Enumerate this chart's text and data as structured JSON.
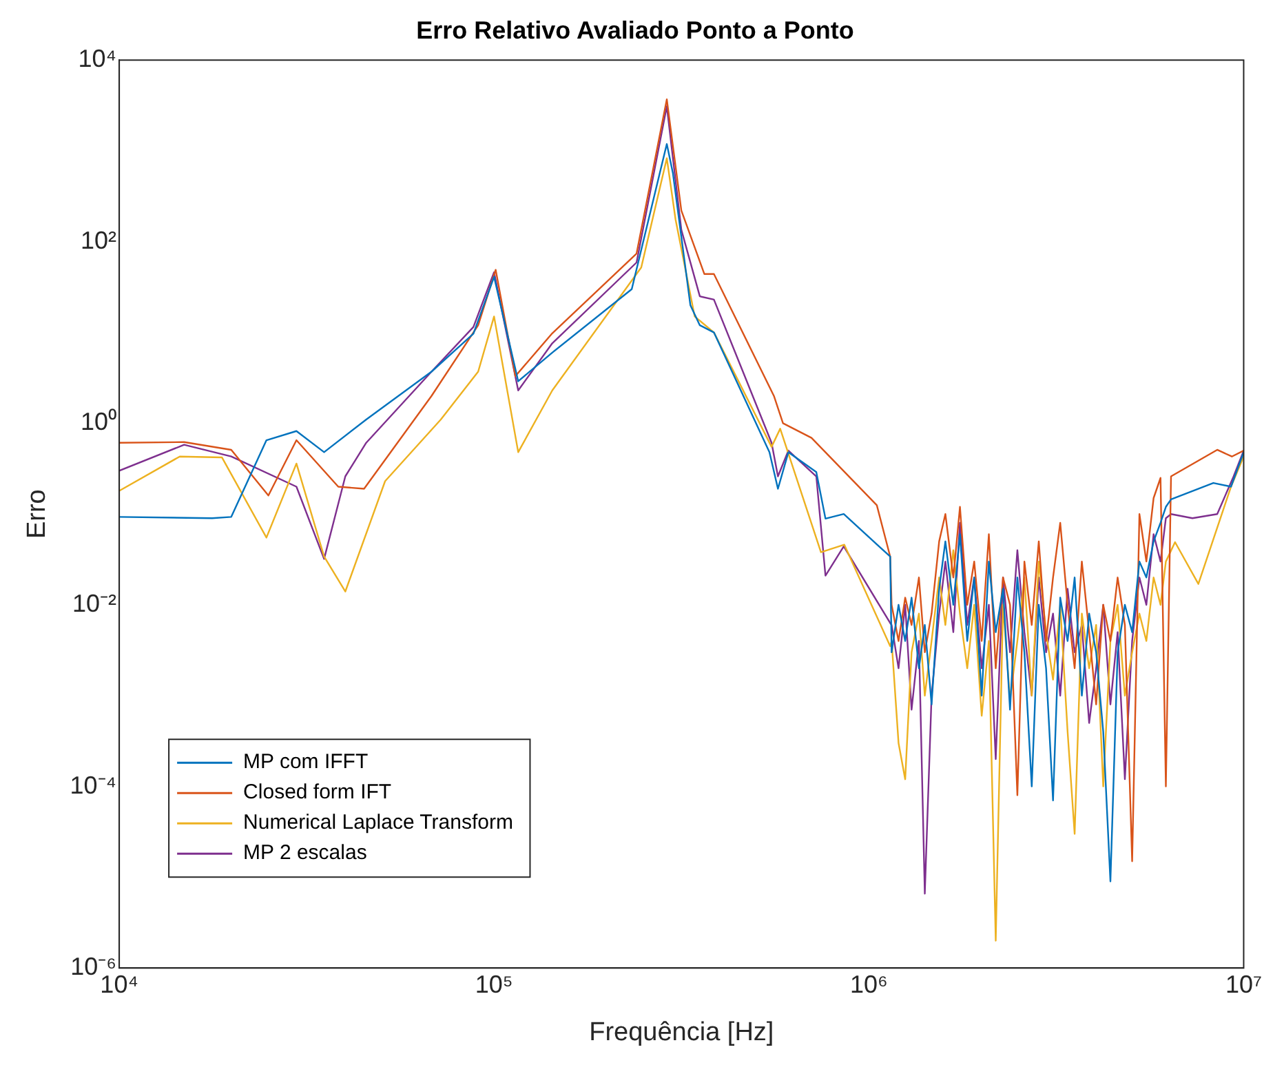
{
  "chart_data": {
    "type": "line",
    "title": "Erro Relativo Avaliado Ponto a Ponto",
    "xlabel": "Frequência [Hz]",
    "ylabel": "Erro",
    "log": "xy",
    "grid": false,
    "legend": "bottom left",
    "marker": "none",
    "line_style": "solid",
    "xlim": [
      10000,
      10000000
    ],
    "xticks": [
      {
        "value": 10000,
        "label": "10⁴"
      },
      {
        "value": 100000,
        "label": "10⁵"
      },
      {
        "value": 1000000,
        "label": "10⁶"
      },
      {
        "value": 10000000,
        "label": "10⁷"
      }
    ],
    "ylim": [
      1e-06,
      10000
    ],
    "yticks": [
      {
        "value": 1e-06,
        "label": "10⁻⁶"
      },
      {
        "value": 0.0001,
        "label": "10⁻⁴"
      },
      {
        "value": 0.01,
        "label": "10⁻²"
      },
      {
        "value": 1,
        "label": "10⁰"
      },
      {
        "value": 100,
        "label": "10²"
      },
      {
        "value": 10000,
        "label": "10⁴"
      }
    ],
    "series": [
      {
        "name": "MP com IFFT",
        "color": "#0072bd",
        "x": [
          10000,
          17700,
          19900,
          24700,
          29700,
          35200,
          45600,
          68100,
          88100,
          100000,
          116000,
          143000,
          233000,
          289000,
          300000,
          334000,
          354000,
          386000,
          543000,
          572000,
          610000,
          724000,
          766000,
          857000,
          1140000,
          1150000,
          1200000,
          1250000,
          1300000,
          1360000,
          1410000,
          1470000,
          1540000,
          1600000,
          1680000,
          1750000,
          1830000,
          1910000,
          2000000,
          2090000,
          2180000,
          2280000,
          2380000,
          2490000,
          2600000,
          2720000,
          2840000,
          2970000,
          3100000,
          3240000,
          3390000,
          3540000,
          3700000,
          3870000,
          4040000,
          4220000,
          4410000,
          4610000,
          4820000,
          5040000,
          5270000,
          5500000,
          5750000,
          6000000,
          6200000,
          6400000,
          8300000,
          9250000,
          10000000
        ],
        "values": [
          0.093,
          0.09,
          0.093,
          0.65,
          0.82,
          0.48,
          1.1,
          3.7,
          9.7,
          41,
          2.9,
          6,
          30,
          1190,
          570,
          20,
          12,
          10,
          0.48,
          0.19,
          0.48,
          0.29,
          0.089,
          0.1,
          0.034,
          0.003,
          0.01,
          0.004,
          0.012,
          0.002,
          0.006,
          0.0008,
          0.015,
          0.05,
          0.01,
          0.06,
          0.004,
          0.02,
          0.001,
          0.03,
          0.005,
          0.015,
          0.0007,
          0.02,
          0.003,
          0.0001,
          0.01,
          0.002,
          7e-05,
          0.012,
          0.004,
          0.02,
          0.001,
          0.008,
          0.003,
          0.0004,
          9e-06,
          0.003,
          0.01,
          0.005,
          0.03,
          0.02,
          0.05,
          0.08,
          0.12,
          0.145,
          0.22,
          0.2,
          0.48
        ]
      },
      {
        "name": "Closed form IFT",
        "color": "#d95319",
        "x": [
          10000,
          14900,
          19900,
          25000,
          29700,
          38400,
          45000,
          68100,
          90700,
          101000,
          114000,
          143000,
          240000,
          289000,
          316000,
          364000,
          386000,
          558000,
          590000,
          703000,
          1050000,
          1140000,
          1150000,
          1200000,
          1250000,
          1300000,
          1360000,
          1410000,
          1470000,
          1540000,
          1600000,
          1680000,
          1750000,
          1830000,
          1910000,
          2000000,
          2090000,
          2180000,
          2280000,
          2380000,
          2490000,
          2600000,
          2720000,
          2840000,
          2970000,
          3100000,
          3240000,
          3390000,
          3540000,
          3700000,
          3870000,
          4040000,
          4220000,
          4410000,
          4610000,
          4820000,
          5040000,
          5270000,
          5500000,
          5750000,
          6000000,
          6200000,
          6400000,
          8500000,
          9300000,
          10000000
        ],
        "values": [
          0.61,
          0.62,
          0.51,
          0.16,
          0.65,
          0.2,
          0.19,
          2,
          12,
          49,
          3.3,
          9.8,
          74,
          3700,
          220,
          44,
          44,
          2,
          1,
          0.69,
          0.125,
          0.034,
          0.01,
          0.004,
          0.012,
          0.006,
          0.02,
          0.003,
          0.008,
          0.05,
          0.1,
          0.02,
          0.12,
          0.01,
          0.03,
          0.004,
          0.06,
          0.002,
          0.02,
          0.01,
          8e-05,
          0.03,
          0.006,
          0.05,
          0.004,
          0.02,
          0.08,
          0.01,
          0.002,
          0.03,
          0.005,
          0.0008,
          0.01,
          0.004,
          0.02,
          0.006,
          1.5e-05,
          0.1,
          0.03,
          0.15,
          0.25,
          0.0001,
          0.26,
          0.51,
          0.43,
          0.5
        ]
      },
      {
        "name": "Numerical Laplace Transform",
        "color": "#edb120",
        "x": [
          10000,
          14500,
          18800,
          24700,
          29700,
          35200,
          40100,
          51200,
          72100,
          90700,
          100000,
          116000,
          143000,
          247000,
          289000,
          305000,
          343000,
          386000,
          550000,
          580000,
          745000,
          860000,
          1140000,
          1150000,
          1200000,
          1250000,
          1300000,
          1360000,
          1410000,
          1470000,
          1540000,
          1600000,
          1680000,
          1750000,
          1830000,
          1910000,
          2000000,
          2090000,
          2180000,
          2280000,
          2380000,
          2490000,
          2600000,
          2720000,
          2840000,
          2970000,
          3100000,
          3240000,
          3390000,
          3540000,
          3700000,
          3870000,
          4040000,
          4220000,
          4410000,
          4610000,
          4820000,
          5040000,
          5270000,
          5500000,
          5750000,
          6000000,
          6200000,
          6560000,
          7570000,
          9250000,
          10000000
        ],
        "values": [
          0.18,
          0.43,
          0.42,
          0.055,
          0.36,
          0.034,
          0.014,
          0.23,
          1.1,
          3.7,
          15,
          0.48,
          2.3,
          52,
          830,
          175,
          15,
          10,
          0.55,
          0.87,
          0.038,
          0.046,
          0.0035,
          0.004,
          0.0003,
          0.00012,
          0.003,
          0.008,
          0.001,
          0.004,
          0.02,
          0.006,
          0.04,
          0.008,
          0.002,
          0.01,
          0.0006,
          0.004,
          2e-06,
          0.01,
          0.0009,
          0.004,
          0.02,
          0.001,
          0.03,
          0.005,
          0.0015,
          0.01,
          0.0004,
          3e-05,
          0.008,
          0.002,
          0.006,
          0.0001,
          0.004,
          0.01,
          0.001,
          0.003,
          0.008,
          0.004,
          0.02,
          0.01,
          0.03,
          0.049,
          0.017,
          0.2,
          0.43
        ]
      },
      {
        "name": "MP 2 escalas",
        "color": "#7e2f8e",
        "x": [
          10000,
          14900,
          19900,
          29700,
          35200,
          40100,
          45600,
          68100,
          88100,
          100000,
          116000,
          143000,
          240000,
          289000,
          316000,
          354000,
          386000,
          550000,
          572000,
          610000,
          724000,
          766000,
          857000,
          1140000,
          1150000,
          1200000,
          1250000,
          1300000,
          1360000,
          1410000,
          1470000,
          1540000,
          1600000,
          1680000,
          1750000,
          1830000,
          1910000,
          2000000,
          2090000,
          2180000,
          2280000,
          2380000,
          2490000,
          2600000,
          2720000,
          2840000,
          2970000,
          3100000,
          3240000,
          3390000,
          3540000,
          3700000,
          3870000,
          4040000,
          4220000,
          4410000,
          4610000,
          4820000,
          5040000,
          5270000,
          5500000,
          5750000,
          6000000,
          6200000,
          6400000,
          7300000,
          8500000,
          9400000,
          10000000
        ],
        "values": [
          0.3,
          0.58,
          0.43,
          0.2,
          0.032,
          0.26,
          0.61,
          3.7,
          11.5,
          46,
          2.3,
          7.6,
          59,
          3100,
          135,
          25,
          23,
          0.61,
          0.26,
          0.5,
          0.26,
          0.021,
          0.044,
          0.0063,
          0.006,
          0.002,
          0.01,
          0.0007,
          0.004,
          6.6e-06,
          0.001,
          0.008,
          0.03,
          0.005,
          0.08,
          0.006,
          0.02,
          0.002,
          0.01,
          0.0002,
          0.02,
          0.003,
          0.04,
          0.005,
          0.001,
          0.02,
          0.003,
          0.008,
          0.001,
          0.015,
          0.003,
          0.006,
          0.0005,
          0.002,
          0.01,
          0.0008,
          0.005,
          0.00012,
          0.004,
          0.02,
          0.01,
          0.06,
          0.03,
          0.09,
          0.1,
          0.09,
          0.1,
          0.26,
          0.5
        ]
      }
    ]
  }
}
